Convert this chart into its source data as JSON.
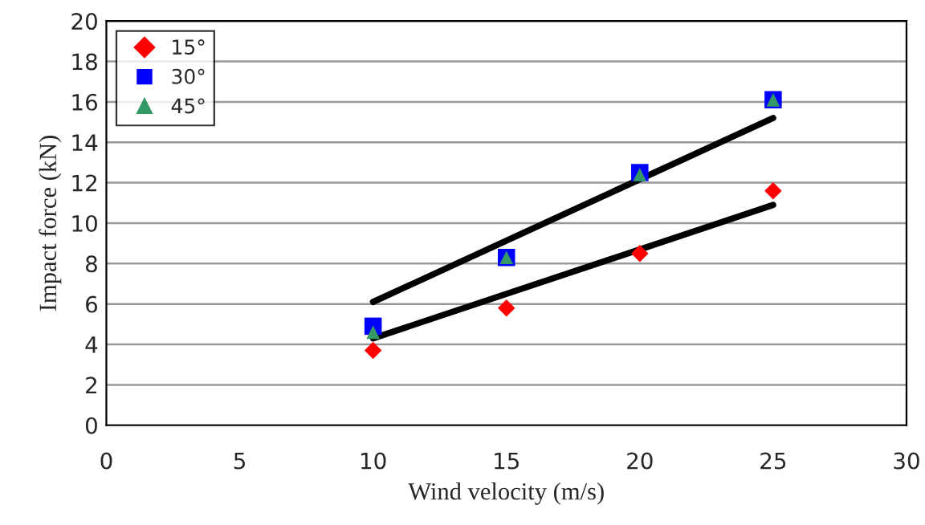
{
  "chart_data": {
    "type": "scatter",
    "xlabel": "Wind velocity (m/s)",
    "ylabel": "Impact force (kN)",
    "xlim": [
      0,
      30
    ],
    "xticks": [
      0,
      5,
      10,
      15,
      20,
      25,
      30
    ],
    "ylim": [
      0,
      20
    ],
    "yticks": [
      0,
      2,
      4,
      6,
      8,
      10,
      12,
      14,
      16,
      18,
      20
    ],
    "grid": "y",
    "legend": "top left",
    "series": [
      {
        "name": "15°",
        "color": "#ff0000",
        "marker": "diamond",
        "x": [
          10,
          15,
          20,
          25
        ],
        "values": [
          3.7,
          5.8,
          8.5,
          11.6
        ]
      },
      {
        "name": "30°",
        "color": "#0000ff",
        "marker": "square",
        "x": [
          10,
          15,
          20,
          25
        ],
        "values": [
          4.9,
          8.3,
          12.5,
          16.1
        ]
      },
      {
        "name": "45°",
        "color": "#339966",
        "marker": "triangle",
        "x": [
          10,
          15,
          20,
          25
        ],
        "values": [
          4.6,
          8.3,
          12.4,
          16.1
        ]
      },
      {
        "type": "line",
        "color": "#000000",
        "marker": "none",
        "line_style": "solid",
        "x": [
          10,
          25
        ],
        "values": [
          6.1,
          15.2
        ]
      },
      {
        "type": "line",
        "color": "#000000",
        "marker": "none",
        "line_style": "solid",
        "x": [
          10,
          25
        ],
        "values": [
          4.3,
          10.9
        ]
      }
    ]
  }
}
